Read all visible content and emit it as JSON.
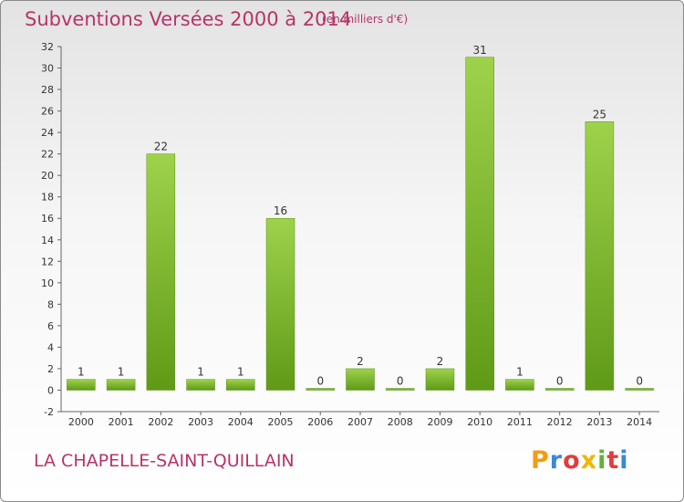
{
  "header": {
    "title": "Subventions Versées 2000 à 2014",
    "unit": "(en milliers d'€)"
  },
  "footer": {
    "commune": "LA CHAPELLE-SAINT-QUILLAIN",
    "logo_text": "Proxiti",
    "logo_letters": [
      {
        "ch": "P",
        "color": "#f39c12"
      },
      {
        "ch": "r",
        "color": "#3a89d8"
      },
      {
        "ch": "o",
        "color": "#e23d3d"
      },
      {
        "ch": "x",
        "color": "#f5b400"
      },
      {
        "ch": "i",
        "color": "#5fb335"
      },
      {
        "ch": "t",
        "color": "#e23d3d"
      },
      {
        "ch": "i",
        "color": "#3a89d8"
      }
    ]
  },
  "colors": {
    "accent": "#b8336a",
    "bar_light": "#9ed24b",
    "bar_dark": "#5f9a17"
  },
  "chart_data": {
    "type": "bar",
    "title": "Subventions Versées 2000 à 2014",
    "subtitle": "(en milliers d'€)",
    "xlabel": "",
    "ylabel": "",
    "categories": [
      "2000",
      "2001",
      "2002",
      "2003",
      "2004",
      "2005",
      "2006",
      "2007",
      "2008",
      "2009",
      "2010",
      "2011",
      "2012",
      "2013",
      "2014"
    ],
    "values": [
      1,
      1,
      22,
      1,
      1,
      16,
      0,
      2,
      0,
      2,
      31,
      1,
      0,
      25,
      0
    ],
    "ylim": [
      -2,
      32
    ],
    "yticks": [
      -2,
      0,
      2,
      4,
      6,
      8,
      10,
      12,
      14,
      16,
      18,
      20,
      22,
      24,
      26,
      28,
      30,
      32
    ],
    "grid": false
  }
}
